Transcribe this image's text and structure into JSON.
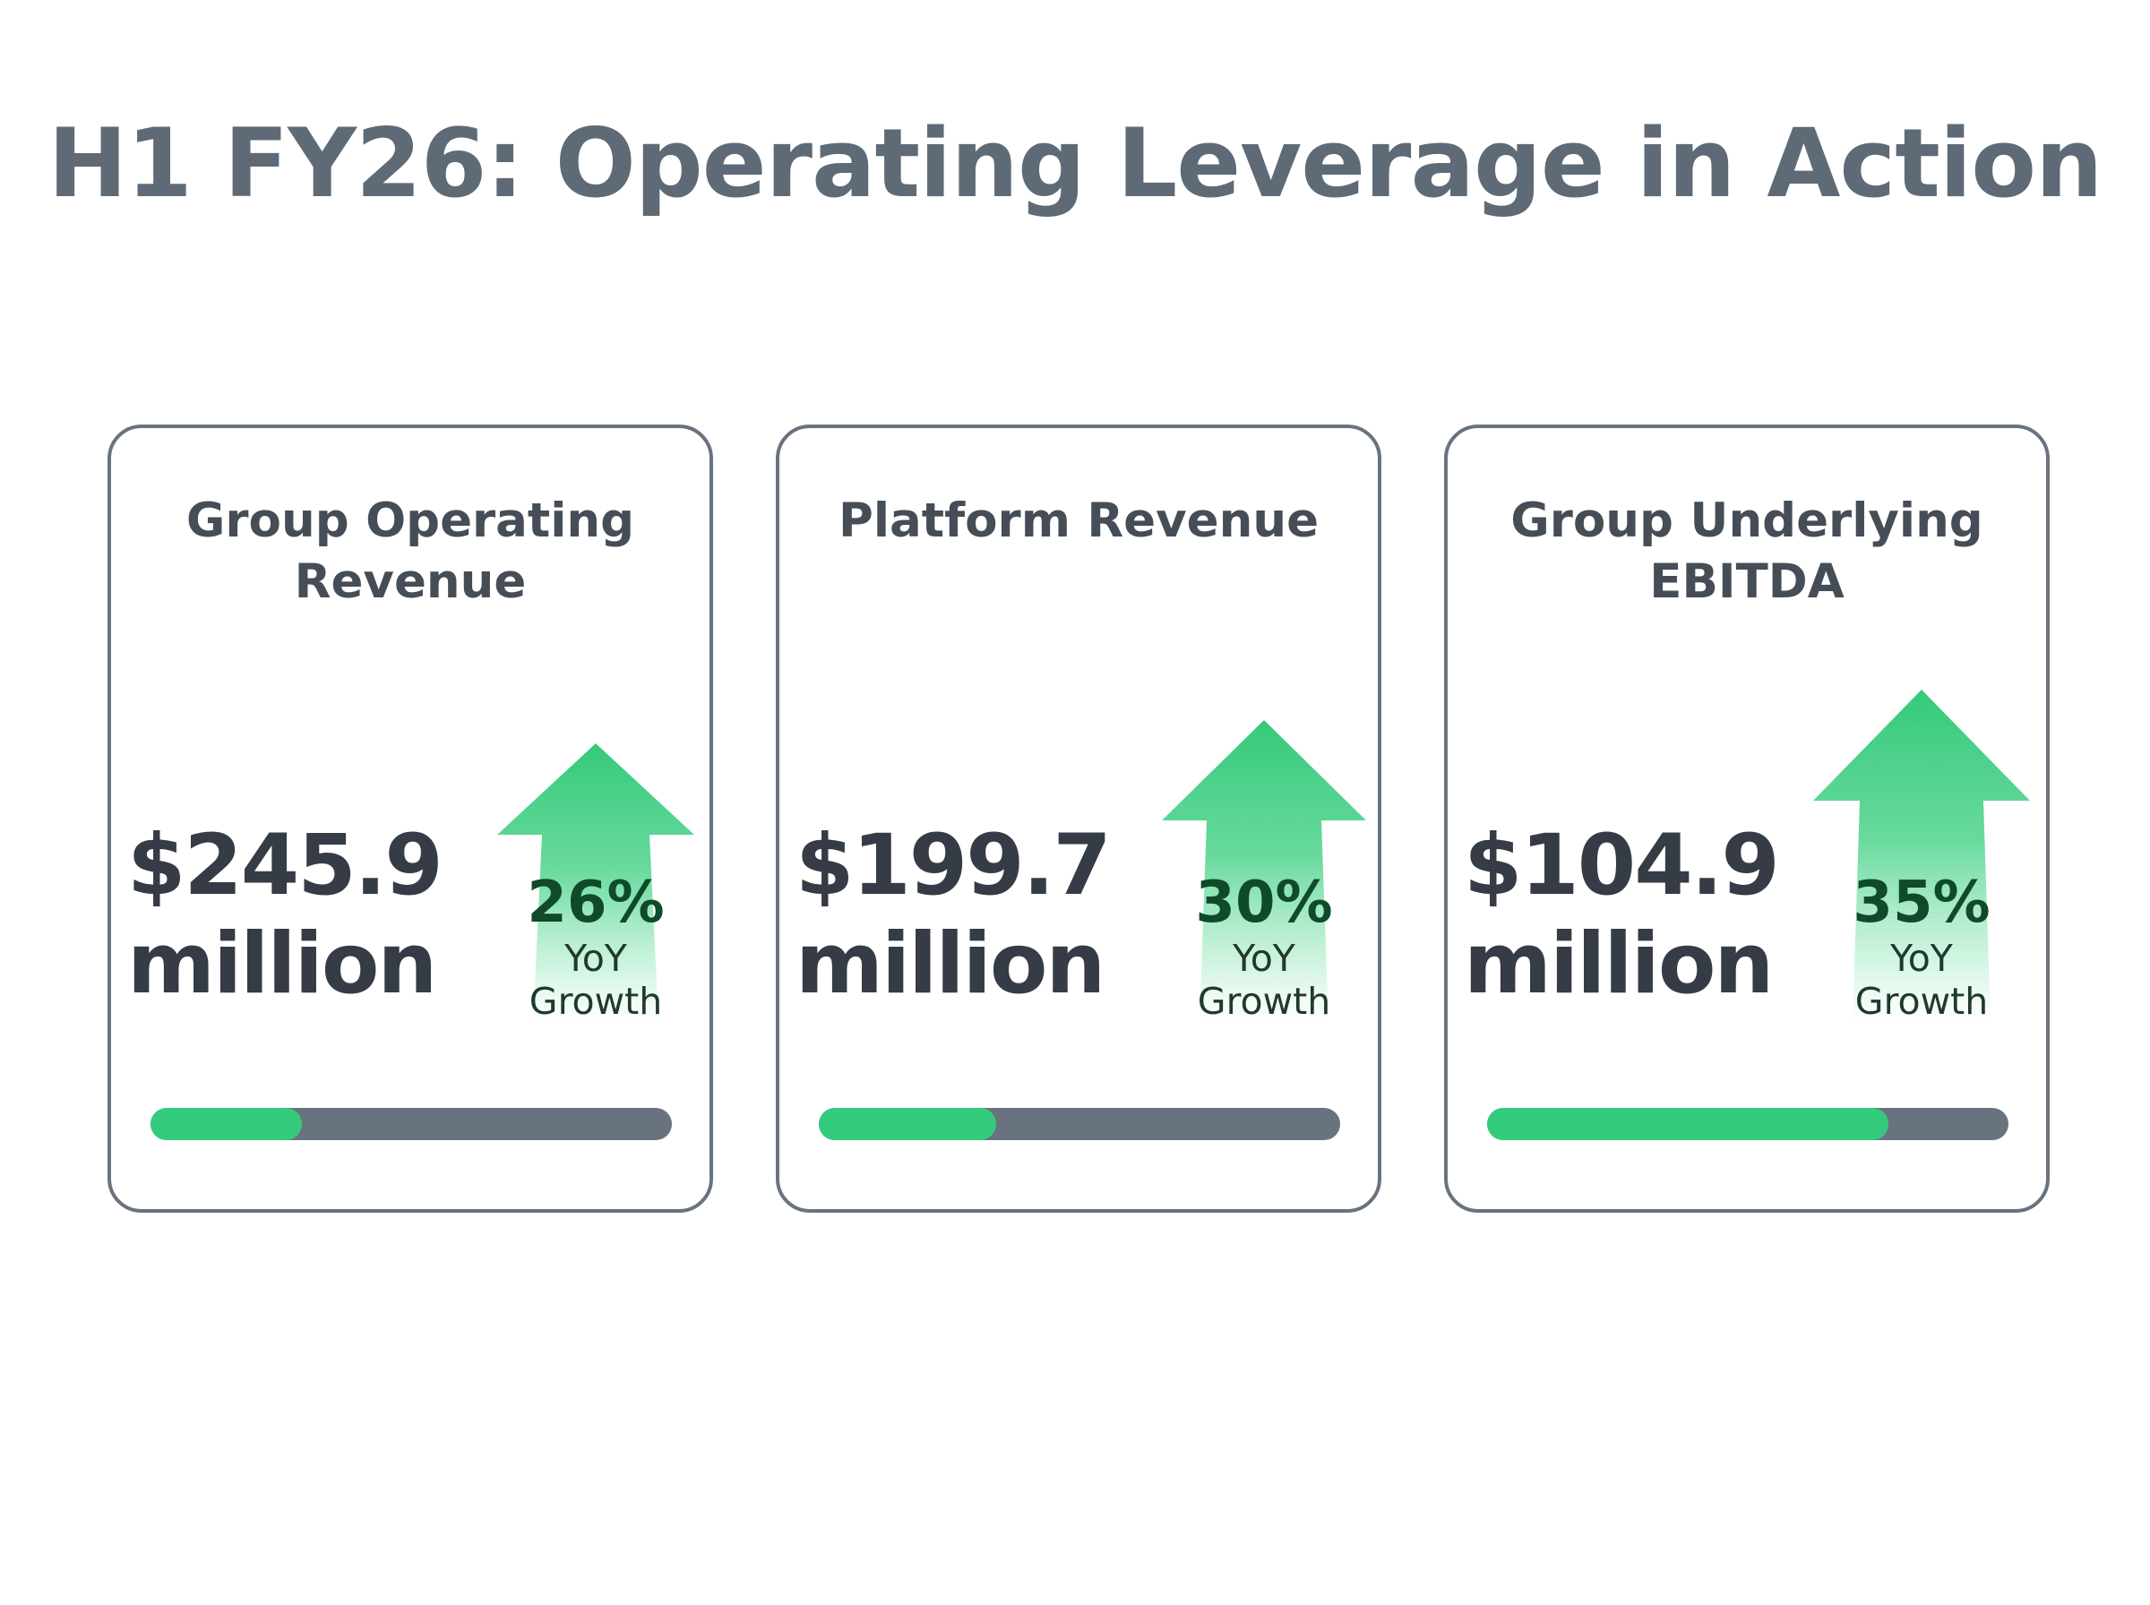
{
  "title": "H1 FY26: Operating Leverage in Action",
  "colors": {
    "accent_green": "#34cc7c",
    "slate": "#69737f",
    "text_dark": "#353c45",
    "title_gray": "#5f6a77",
    "growth_text": "#0f4a2a"
  },
  "cards": [
    {
      "title_line1": "Group Operating",
      "title_line2": "Revenue",
      "value_line1": "$245.9",
      "value_line2": "million",
      "growth_pct": "26%",
      "growth_line1": "YoY",
      "growth_line2": "Growth",
      "progress_fraction": 0.29,
      "icon": "up-arrow-icon"
    },
    {
      "title_line1": "Platform Revenue",
      "title_line2": "",
      "value_line1": "$199.7",
      "value_line2": "million",
      "growth_pct": "30%",
      "growth_line1": "YoY",
      "growth_line2": "Growth",
      "progress_fraction": 0.34,
      "icon": "up-arrow-icon"
    },
    {
      "title_line1": "Group Underlying",
      "title_line2": "EBITDA",
      "value_line1": "$104.9",
      "value_line2": "million",
      "growth_pct": "35%",
      "growth_line1": "YoY",
      "growth_line2": "Growth",
      "progress_fraction": 0.77,
      "icon": "up-arrow-icon"
    }
  ]
}
